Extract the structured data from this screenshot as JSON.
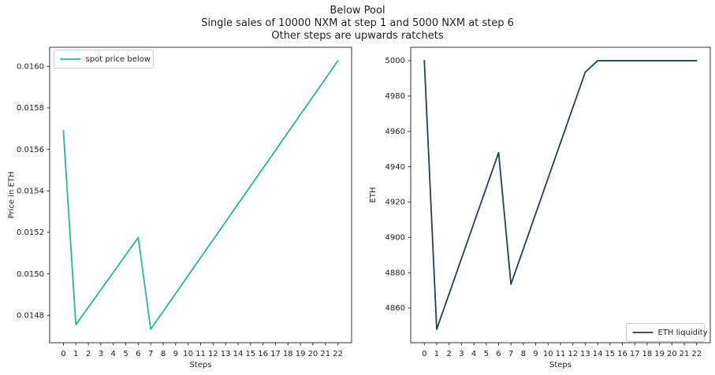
{
  "title": {
    "line1": "Below Pool",
    "line2": "Single sales of 10000 NXM at step 1 and 5000 NXM at step 6",
    "line3": "Other steps are upwards ratchets"
  },
  "chart_data": [
    {
      "type": "line",
      "xlabel": "Steps",
      "ylabel": "Price in ETH",
      "x": [
        0,
        1,
        2,
        3,
        4,
        5,
        6,
        7,
        8,
        9,
        10,
        11,
        12,
        13,
        14,
        15,
        16,
        17,
        18,
        19,
        20,
        21,
        22
      ],
      "series": [
        {
          "name": "spot price below",
          "color": "#20bd8e",
          "values": [
            0.01569,
            0.014755,
            0.014839,
            0.014923,
            0.015007,
            0.015091,
            0.015175,
            0.014733,
            0.014819,
            0.014905,
            0.014992,
            0.015078,
            0.015164,
            0.01525,
            0.015337,
            0.015423,
            0.015509,
            0.015595,
            0.015682,
            0.015768,
            0.015854,
            0.01594,
            0.016027
          ]
        }
      ],
      "xlim": [
        -1.1,
        23.1
      ],
      "ylim": [
        0.014668,
        0.016092
      ],
      "xaxis": {
        "ticks": [
          0,
          1,
          2,
          3,
          4,
          5,
          6,
          7,
          8,
          9,
          10,
          11,
          12,
          13,
          14,
          15,
          16,
          17,
          18,
          19,
          20,
          21,
          22
        ],
        "tick_labels": [
          "0",
          "1",
          "2",
          "3",
          "4",
          "5",
          "6",
          "7",
          "8",
          "9",
          "10",
          "11",
          "12",
          "13",
          "14",
          "15",
          "16",
          "17",
          "18",
          "19",
          "20",
          "21",
          "22"
        ]
      },
      "yaxis": {
        "ticks": [
          0.0148,
          0.015,
          0.0152,
          0.0154,
          0.0156,
          0.0158,
          0.016
        ],
        "tick_labels": [
          "0.0148",
          "0.0150",
          "0.0152",
          "0.0154",
          "0.0156",
          "0.0158",
          "0.0160"
        ]
      },
      "legend": {
        "label": "spot price below",
        "position": "upper left"
      },
      "grid": false
    },
    {
      "type": "line",
      "xlabel": "Steps",
      "ylabel": "ETH",
      "x": [
        0,
        1,
        2,
        3,
        4,
        5,
        6,
        7,
        8,
        9,
        10,
        11,
        12,
        13,
        14,
        15,
        16,
        17,
        18,
        19,
        20,
        21,
        22
      ],
      "series": [
        {
          "name": "ETH liquidity",
          "color": "#1f4254",
          "values": [
            5000,
            4848,
            4868,
            4888,
            4908,
            4928,
            4948,
            4873.5,
            4893.5,
            4913.5,
            4933.5,
            4953.5,
            4973.5,
            4993.5,
            5000,
            5000,
            5000,
            5000,
            5000,
            5000,
            5000,
            5000,
            5000
          ]
        }
      ],
      "xlim": [
        -1.1,
        23.1
      ],
      "ylim": [
        4840.4,
        5007.6
      ],
      "xaxis": {
        "ticks": [
          0,
          1,
          2,
          3,
          4,
          5,
          6,
          7,
          8,
          9,
          10,
          11,
          12,
          13,
          14,
          15,
          16,
          17,
          18,
          19,
          20,
          21,
          22
        ],
        "tick_labels": [
          "0",
          "1",
          "2",
          "3",
          "4",
          "5",
          "6",
          "7",
          "8",
          "9",
          "10",
          "11",
          "12",
          "13",
          "14",
          "15",
          "16",
          "17",
          "18",
          "19",
          "20",
          "21",
          "22"
        ]
      },
      "yaxis": {
        "ticks": [
          4860,
          4880,
          4900,
          4920,
          4940,
          4960,
          4980,
          5000
        ],
        "tick_labels": [
          "4860",
          "4880",
          "4900",
          "4920",
          "4940",
          "4960",
          "4980",
          "5000"
        ]
      },
      "legend": {
        "label": "ETH liquidity",
        "position": "lower right"
      },
      "grid": false
    }
  ],
  "colors": {
    "spot_price_line": "#20bd8e",
    "eth_liquidity_line": "#1f4254",
    "axis": "#333333",
    "text": "#1f1f1f",
    "legend_border": "#cccccc"
  }
}
